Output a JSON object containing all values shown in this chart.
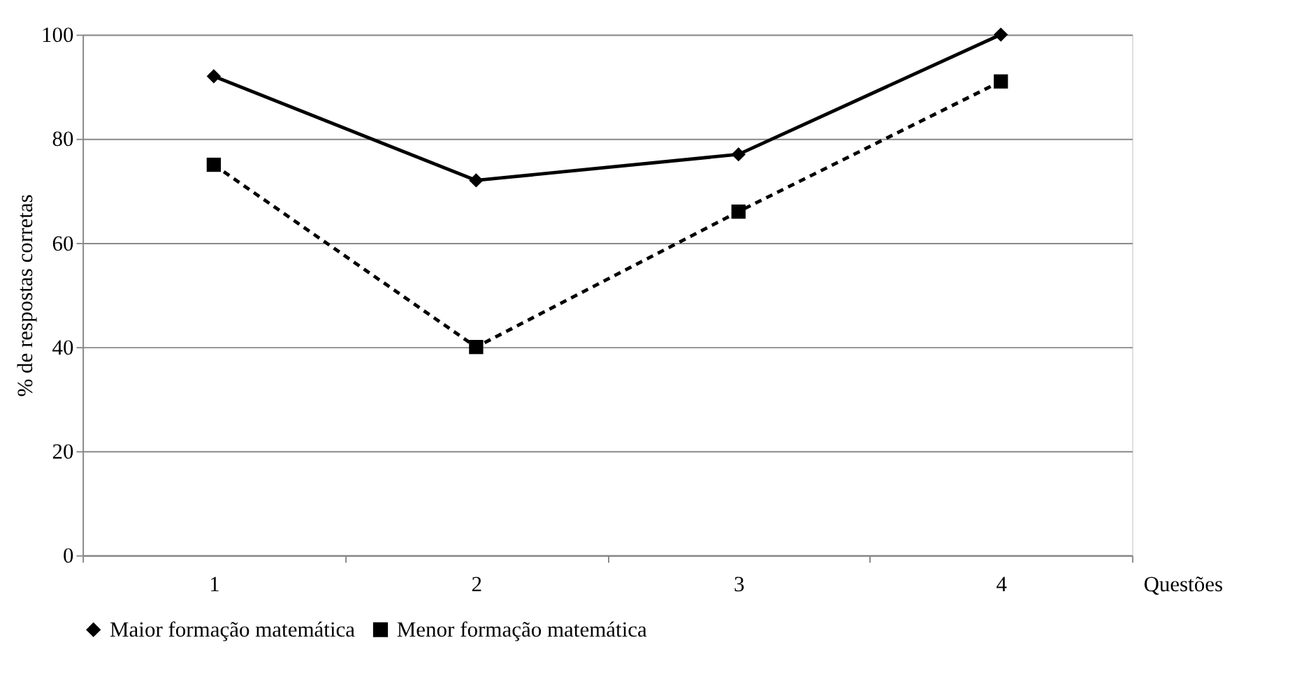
{
  "chart_data": {
    "type": "line",
    "xlabel": "Questões",
    "ylabel": "% de respostas corretas",
    "categories": [
      "1",
      "2",
      "3",
      "4"
    ],
    "series": [
      {
        "name": "Maior formação matemática",
        "color": "#000000",
        "values": [
          92,
          72,
          77,
          100
        ],
        "marker": "diamond",
        "line_style": "solid"
      },
      {
        "name": "Menor formação matemática",
        "color": "#000000",
        "values": [
          75,
          40,
          66,
          91
        ],
        "marker": "square",
        "line_style": "dashed"
      }
    ],
    "ylim": [
      0,
      100
    ],
    "yticks": [
      0,
      20,
      40,
      60,
      80,
      100
    ],
    "grid": "y",
    "legend": "bottom"
  }
}
